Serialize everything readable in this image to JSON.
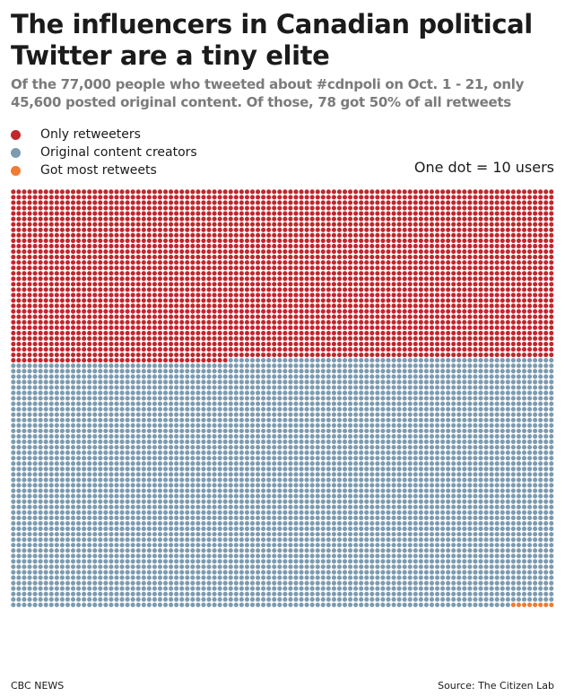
{
  "title": "The influencers in Canadian political Twitter are a tiny elite",
  "subtitle": "Of the 77,000 people who tweeted about #cdnpoli on Oct. 1 - 21, only 45,600 posted original content. Of those, 78 got 50% of all retweets",
  "legend": [
    {
      "label": "Only retweeters",
      "color": "#c1272d"
    },
    {
      "label": "Original content creators",
      "color": "#7c9bb0"
    },
    {
      "label": "Got most retweets",
      "color": "#f07b33"
    }
  ],
  "unit_note": "One dot = 10 users",
  "footer": {
    "source_org": "CBC NEWS",
    "source": "Source:  The Citizen Lab"
  },
  "chart_data": {
    "type": "waffle",
    "dot_value": 10,
    "total_users": 77000,
    "columns": 100,
    "series": [
      {
        "name": "Only retweeters",
        "users": 31400,
        "dots": 3140
      },
      {
        "name": "Original content creators",
        "users": 45522,
        "dots": 4552
      },
      {
        "name": "Got most retweets",
        "users": 78,
        "dots": 8
      }
    ]
  }
}
